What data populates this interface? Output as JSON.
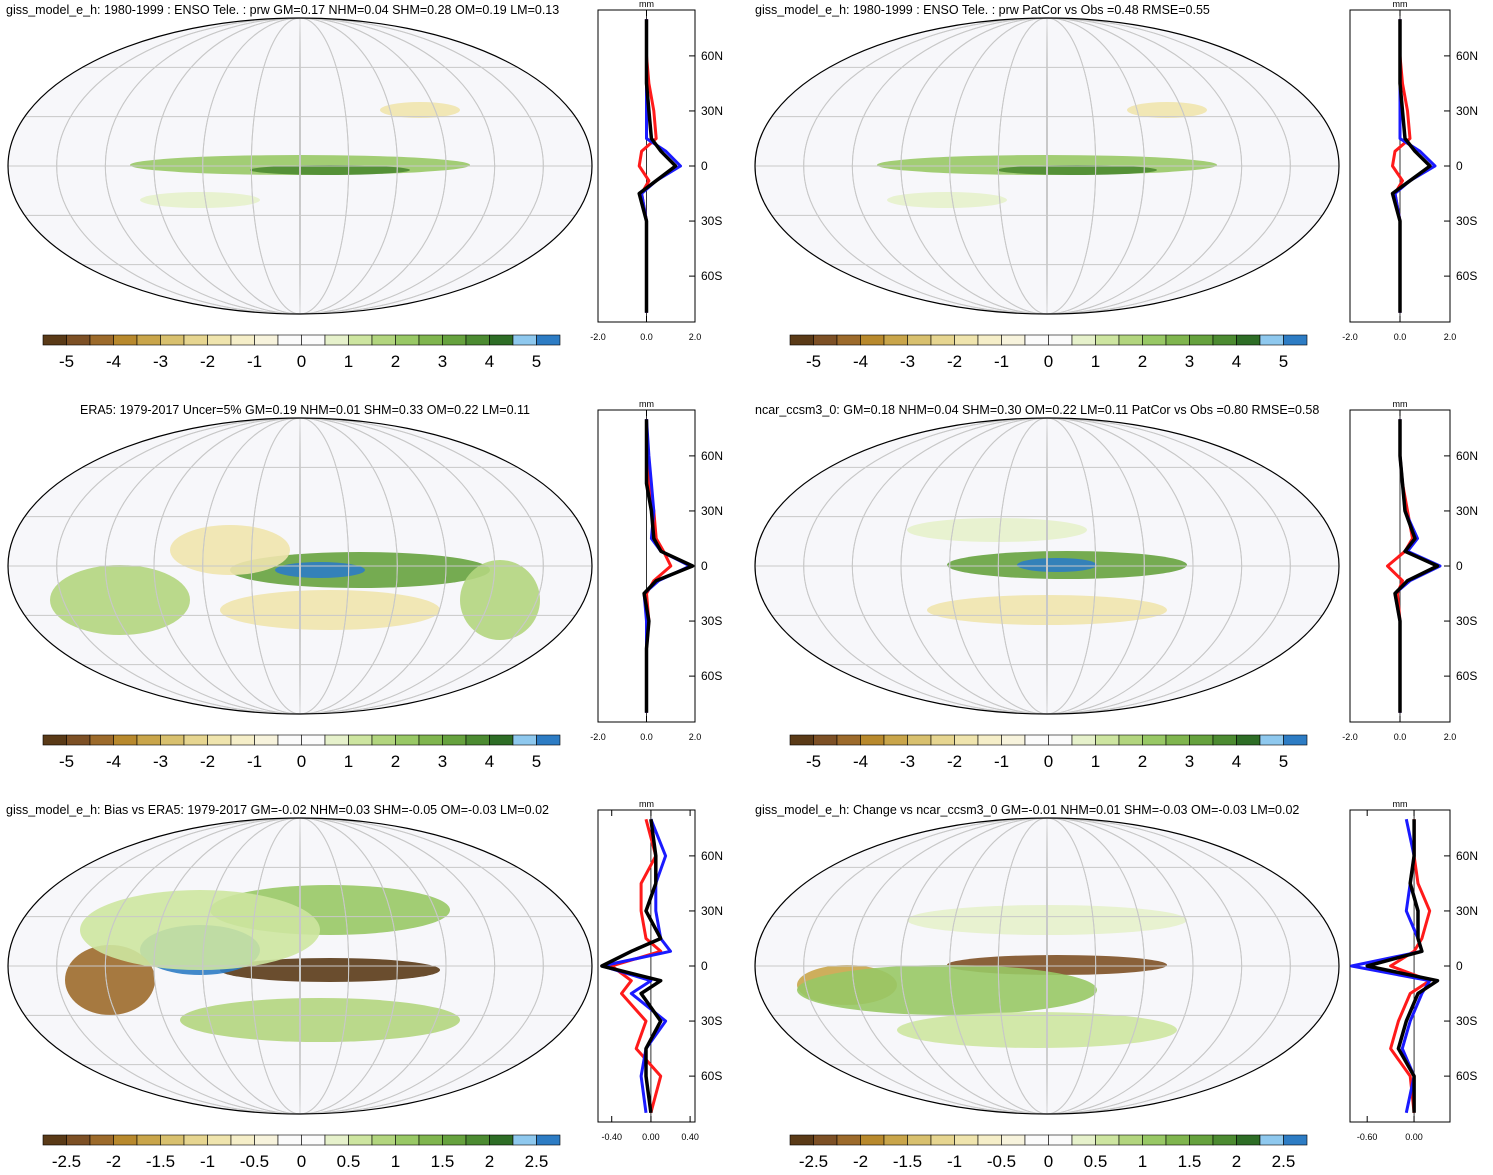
{
  "colorbar_colors": [
    "#5a3a17",
    "#7d5025",
    "#9c6a2b",
    "#b8892d",
    "#c9a54a",
    "#d8c06e",
    "#e6d590",
    "#efe4ad",
    "#f5eec8",
    "#f7f3dc",
    "#fbfbfb",
    "#fbfbfb",
    "#e6f1cb",
    "#cde5a0",
    "#b2d57e",
    "#98c865",
    "#7fb54e",
    "#66a23e",
    "#4c8b31",
    "#2e6d26",
    "#8ec8ee",
    "#2d7cc4"
  ],
  "panels": [
    {
      "title": "giss_model_e_h: 1980-1999 : ENSO Tele. : prw GM=0.17 NHM=0.04 SHM=0.28 OM=0.19 LM=0.13",
      "colorbar_labels": [
        "-5",
        "-4",
        "-3",
        "-2",
        "-1",
        "0",
        "1",
        "2",
        "3",
        "4",
        "5"
      ],
      "profile": {
        "unit": "mm",
        "xlim": [
          -2,
          2
        ],
        "ylim": [
          -85,
          85
        ],
        "xticks": [
          {
            "value": -2,
            "label": "-2.0"
          },
          {
            "value": 0,
            "label": "0.0"
          },
          {
            "value": 2,
            "label": "2.0"
          }
        ],
        "yticks": [
          {
            "value": 60,
            "label": "60N"
          },
          {
            "value": 30,
            "label": "30N"
          },
          0,
          {
            "value": -30,
            "label": "30S"
          },
          {
            "value": -60,
            "label": "60S"
          }
        ],
        "lat": [
          80,
          60,
          45,
          30,
          15,
          8,
          0,
          -8,
          -15,
          -30,
          -45,
          -60,
          -80
        ],
        "series": [
          {
            "color": "#ff1a1a",
            "values": [
              0,
              0,
              0.1,
              0.3,
              0.4,
              -0.2,
              -0.3,
              0.1,
              -0.2,
              0,
              0,
              0,
              0
            ]
          },
          {
            "color": "#1a1aff",
            "values": [
              0,
              0,
              0,
              0,
              0,
              0.8,
              1.4,
              0.4,
              -0.2,
              0,
              0,
              0,
              0
            ]
          },
          {
            "color": "#000000",
            "values": [
              0,
              0,
              0,
              0.1,
              0.2,
              0.6,
              1.2,
              0.4,
              -0.3,
              0,
              0,
              0,
              0
            ]
          }
        ]
      }
    },
    {
      "title": "giss_model_e_h: 1980-1999 : ENSO Tele. : prw PatCor vs Obs =0.48 RMSE=0.55",
      "colorbar_labels": [
        "-5",
        "-4",
        "-3",
        "-2",
        "-1",
        "0",
        "1",
        "2",
        "3",
        "4",
        "5"
      ],
      "profile": {
        "unit": "mm",
        "xlim": [
          -2,
          2
        ],
        "ylim": [
          -85,
          85
        ],
        "xticks": [
          {
            "value": -2,
            "label": "-2.0"
          },
          {
            "value": 0,
            "label": "0.0"
          },
          {
            "value": 2,
            "label": "2.0"
          }
        ],
        "yticks": [
          {
            "value": 60,
            "label": "60N"
          },
          {
            "value": 30,
            "label": "30N"
          },
          0,
          {
            "value": -30,
            "label": "30S"
          },
          {
            "value": -60,
            "label": "60S"
          }
        ],
        "lat": [
          80,
          60,
          45,
          30,
          15,
          8,
          0,
          -8,
          -15,
          -30,
          -45,
          -60,
          -80
        ],
        "series": [
          {
            "color": "#ff1a1a",
            "values": [
              0,
              0,
              0.1,
              0.3,
              0.4,
              -0.2,
              -0.3,
              0.1,
              -0.2,
              0,
              0,
              0,
              0
            ]
          },
          {
            "color": "#1a1aff",
            "values": [
              0,
              0,
              0,
              0,
              0,
              0.8,
              1.4,
              0.4,
              -0.2,
              0,
              0,
              0,
              0
            ]
          },
          {
            "color": "#000000",
            "values": [
              0,
              0,
              0,
              0.1,
              0.2,
              0.6,
              1.2,
              0.4,
              -0.3,
              0,
              0,
              0,
              0
            ]
          }
        ]
      }
    },
    {
      "title": "ERA5: 1979-2017 Uncer=5% GM=0.19 NHM=0.01 SHM=0.33 OM=0.22 LM=0.11",
      "colorbar_labels": [
        "-5",
        "-4",
        "-3",
        "-2",
        "-1",
        "0",
        "1",
        "2",
        "3",
        "4",
        "5"
      ],
      "profile": {
        "unit": "mm",
        "xlim": [
          -2,
          2
        ],
        "ylim": [
          -85,
          85
        ],
        "xticks": [
          {
            "value": -2,
            "label": "-2.0"
          },
          {
            "value": 0,
            "label": "0.0"
          },
          {
            "value": 2,
            "label": "2.0"
          }
        ],
        "yticks": [
          {
            "value": 60,
            "label": "60N"
          },
          {
            "value": 30,
            "label": "30N"
          },
          0,
          {
            "value": -30,
            "label": "30S"
          },
          {
            "value": -60,
            "label": "60S"
          }
        ],
        "lat": [
          80,
          60,
          45,
          30,
          15,
          8,
          0,
          -8,
          -15,
          -30,
          -45,
          -60,
          -80
        ],
        "series": [
          {
            "color": "#ff1a1a",
            "values": [
              0,
              0,
              0.1,
              0.3,
              0.4,
              0.7,
              1.0,
              0.3,
              0,
              0.1,
              0,
              0,
              0
            ]
          },
          {
            "color": "#1a1aff",
            "values": [
              0,
              0.1,
              0.2,
              0.3,
              0.2,
              0.6,
              1.8,
              0.5,
              -0.1,
              0,
              0,
              0,
              0
            ]
          },
          {
            "color": "#000000",
            "values": [
              0,
              0,
              0,
              0.2,
              0.3,
              0.6,
              1.9,
              0.4,
              -0.1,
              0.1,
              0,
              0,
              0
            ]
          }
        ]
      }
    },
    {
      "title": "ncar_ccsm3_0: GM=0.18 NHM=0.04 SHM=0.30 OM=0.22 LM=0.11 PatCor vs Obs =0.80 RMSE=0.58",
      "colorbar_labels": [
        "-5",
        "-4",
        "-3",
        "-2",
        "-1",
        "0",
        "1",
        "2",
        "3",
        "4",
        "5"
      ],
      "profile": {
        "unit": "mm",
        "xlim": [
          -2,
          2
        ],
        "ylim": [
          -85,
          85
        ],
        "xticks": [
          {
            "value": -2,
            "label": "-2.0"
          },
          {
            "value": 0,
            "label": "0.0"
          },
          {
            "value": 2,
            "label": "2.0"
          }
        ],
        "yticks": [
          {
            "value": 60,
            "label": "60N"
          },
          {
            "value": 30,
            "label": "30N"
          },
          0,
          {
            "value": -30,
            "label": "30S"
          },
          {
            "value": -60,
            "label": "60S"
          }
        ],
        "lat": [
          80,
          60,
          45,
          30,
          15,
          8,
          0,
          -8,
          -15,
          -30,
          -45,
          -60,
          -80
        ],
        "series": [
          {
            "color": "#ff1a1a",
            "values": [
              0,
              0,
              0.1,
              0.3,
              0.5,
              0.2,
              -0.5,
              0.1,
              -0.1,
              0,
              0,
              0,
              0
            ]
          },
          {
            "color": "#1a1aff",
            "values": [
              0,
              0,
              0.1,
              0.2,
              0.7,
              0.3,
              1.6,
              0.4,
              -0.2,
              0,
              0,
              0,
              0
            ]
          },
          {
            "color": "#000000",
            "values": [
              0,
              0,
              0.1,
              0.2,
              0.6,
              0.2,
              1.5,
              0.3,
              -0.2,
              0,
              0,
              0,
              0
            ]
          }
        ]
      }
    },
    {
      "title": "giss_model_e_h: Bias vs ERA5: 1979-2017 GM=-0.02 NHM=0.03 SHM=-0.05 OM=-0.03 LM=0.02",
      "colorbar_labels": [
        "-2.5",
        "-2",
        "-1.5",
        "-1",
        "-0.5",
        "0",
        "0.5",
        "1",
        "1.5",
        "2",
        "2.5"
      ],
      "profile": {
        "unit": "mm",
        "xlim": [
          -0.54,
          0.45
        ],
        "ylim": [
          -85,
          85
        ],
        "xticks": [
          {
            "value": -0.4,
            "label": "-0.40"
          },
          {
            "value": 0,
            "label": "0.00"
          },
          {
            "value": 0.4,
            "label": "0.40"
          }
        ],
        "yticks": [
          {
            "value": 60,
            "label": "60N"
          },
          {
            "value": 30,
            "label": "30N"
          },
          0,
          {
            "value": -30,
            "label": "30S"
          },
          {
            "value": -60,
            "label": "60S"
          }
        ],
        "lat": [
          80,
          60,
          45,
          30,
          15,
          8,
          0,
          -8,
          -15,
          -30,
          -45,
          -60,
          -80
        ],
        "series": [
          {
            "color": "#ff1a1a",
            "values": [
              -0.05,
              0.05,
              -0.1,
              -0.1,
              -0.05,
              0.1,
              -0.4,
              -0.2,
              -0.3,
              -0.05,
              -0.15,
              0.1,
              0
            ]
          },
          {
            "color": "#1a1aff",
            "values": [
              0,
              0.15,
              0.05,
              0.05,
              0.1,
              0.2,
              -0.5,
              0,
              -0.2,
              0.15,
              -0.05,
              -0.1,
              -0.05
            ]
          },
          {
            "color": "#000000",
            "values": [
              0,
              0.05,
              0.05,
              -0.05,
              0.1,
              -0.2,
              -0.5,
              0.1,
              -0.1,
              0.1,
              -0.05,
              -0.05,
              0
            ]
          }
        ]
      }
    },
    {
      "title": "giss_model_e_h: Change vs ncar_ccsm3_0 GM=-0.01 NHM=0.01 SHM=-0.03 OM=-0.03 LM=0.02",
      "colorbar_labels": [
        "-2.5",
        "-2",
        "-1.5",
        "-1",
        "-0.5",
        "0",
        "0.5",
        "1",
        "1.5",
        "2",
        "2.5"
      ],
      "profile": {
        "unit": "mm",
        "xlim": [
          -0.82,
          0.46
        ],
        "ylim": [
          -85,
          85
        ],
        "xticks": [
          {
            "value": -0.6,
            "label": "-0.60"
          },
          {
            "value": 0,
            "label": "0.00"
          }
        ],
        "yticks": [
          {
            "value": 60,
            "label": "60N"
          },
          {
            "value": 30,
            "label": "30N"
          },
          0,
          {
            "value": -30,
            "label": "30S"
          },
          {
            "value": -60,
            "label": "60S"
          }
        ],
        "lat": [
          80,
          60,
          45,
          30,
          15,
          8,
          0,
          -8,
          -15,
          -30,
          -45,
          -60,
          -80
        ],
        "series": [
          {
            "color": "#ff1a1a",
            "values": [
              0,
              0,
              0.05,
              0.2,
              0.1,
              0,
              -0.3,
              0.2,
              -0.05,
              -0.2,
              -0.3,
              -0.05,
              0
            ]
          },
          {
            "color": "#1a1aff",
            "values": [
              -0.1,
              0,
              -0.05,
              -0.1,
              0.05,
              0.1,
              -0.8,
              0.2,
              0.1,
              -0.05,
              -0.15,
              0,
              -0.1
            ]
          },
          {
            "color": "#000000",
            "values": [
              0,
              0,
              -0.05,
              0.05,
              0.05,
              0.1,
              -0.6,
              0.3,
              0.05,
              -0.1,
              -0.2,
              0,
              0
            ]
          }
        ]
      }
    }
  ]
}
